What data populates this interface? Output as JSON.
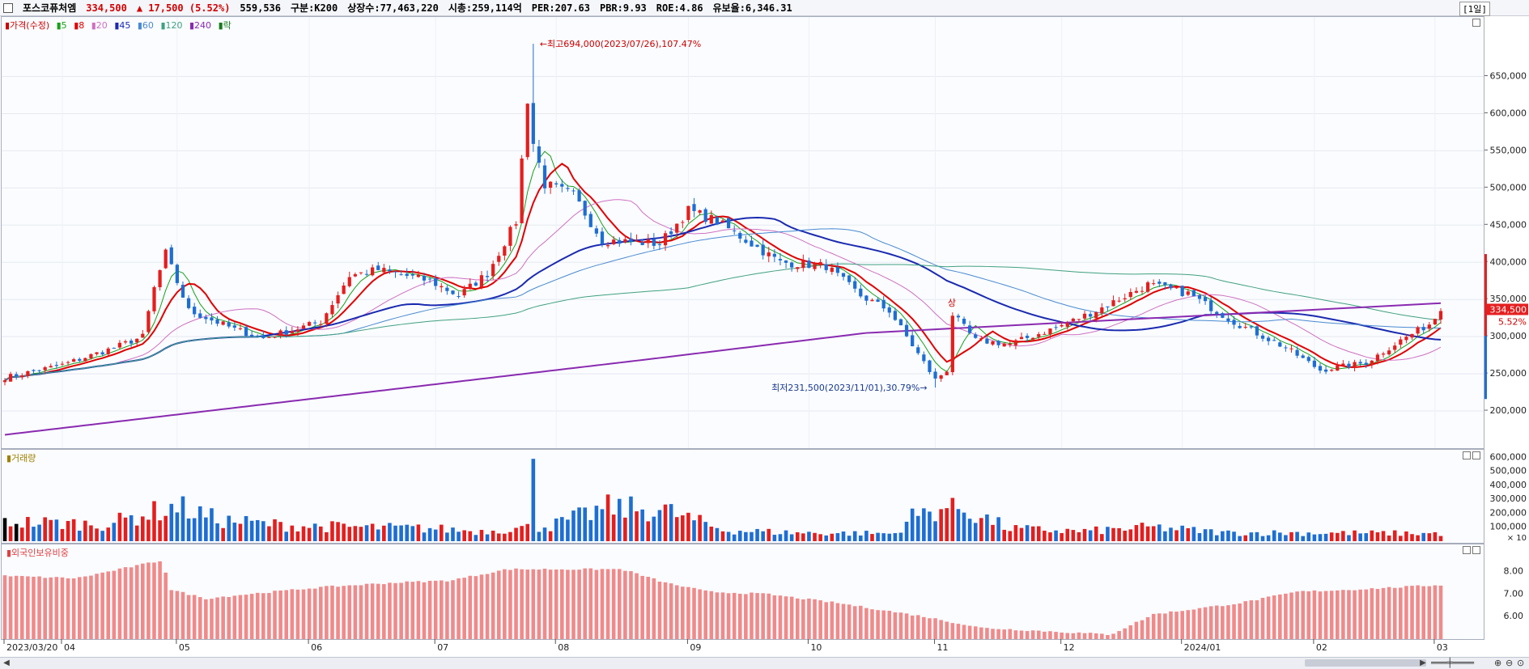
{
  "info": {
    "name": "포스코퓨처엠",
    "price": "334,500",
    "change": "▲ 17,500 (5.52%)",
    "volume": "559,536",
    "segment": "구분:K200",
    "shares": "상장수:77,463,220",
    "market_cap": "시총:259,114억",
    "per": "PER:207.63",
    "pbr": "PBR:9.93",
    "roe": "ROE:4.86",
    "float": "유보율:6,346.31",
    "period": "[1일]"
  },
  "legend": {
    "price": "▮가격(수정)",
    "ma5": "▮5",
    "ma8": "▮8",
    "ma20": "▮20",
    "ma45": "▮45",
    "ma60": "▮60",
    "ma120": "▮120",
    "ma240": "▮240",
    "lock": "▮락"
  },
  "annotations": {
    "high": "최고694,000(2023/07/26),107.47%",
    "low": "최저231,500(2023/11/01),30.79%",
    "limit_up": "상",
    "last_price_tag": "334,500",
    "last_change_tag": "5.52%"
  },
  "volume_pane": {
    "title": "▮거래량",
    "unit": "× 10"
  },
  "foreign_pane": {
    "title": "▮외국인보유비중"
  },
  "colors": {
    "up": "#e41e1e",
    "down": "#1e6ed2",
    "ma5": "#1aa01a",
    "ma8": "#e00000",
    "ma20": "#d070c0",
    "ma45": "#1a2ab0",
    "ma60": "#4a8ad0",
    "ma120": "#40a080",
    "ma240": "#8a2ab0",
    "foreign_bar": "#f08a8a"
  },
  "chart_data": [
    {
      "type": "candlestick",
      "title": "",
      "x_tick_labels": [
        "2023/03/20",
        "04",
        "05",
        "06",
        "07",
        "08",
        "09",
        "10",
        "11",
        "12",
        "2024/01",
        "02",
        "03"
      ],
      "y_tick_labels": [
        "200,000",
        "250,000",
        "300,000",
        "350,000",
        "400,000",
        "450,000",
        "500,000",
        "550,000",
        "600,000",
        "650,000"
      ],
      "ylim": [
        150000,
        730000
      ],
      "high_point": {
        "date": "2023/07/26",
        "value": 694000
      },
      "low_point": {
        "date": "2023/11/01",
        "value": 231500
      },
      "close_anchors": [
        [
          "2023/03/20",
          245000
        ],
        [
          "2023/04/03",
          262000
        ],
        [
          "2023/04/14",
          285000
        ],
        [
          "2023/04/21",
          300000
        ],
        [
          "2023/04/25",
          365000
        ],
        [
          "2023/04/27",
          412000
        ],
        [
          "2023/05/03",
          335000
        ],
        [
          "2023/05/15",
          310000
        ],
        [
          "2023/05/22",
          298000
        ],
        [
          "2023/06/05",
          320000
        ],
        [
          "2023/06/12",
          382000
        ],
        [
          "2023/06/19",
          390000
        ],
        [
          "2023/06/30",
          375000
        ],
        [
          "2023/07/07",
          355000
        ],
        [
          "2023/07/14",
          385000
        ],
        [
          "2023/07/21",
          455000
        ],
        [
          "2023/07/25",
          620000
        ],
        [
          "2023/07/26",
          560000
        ],
        [
          "2023/07/28",
          505000
        ],
        [
          "2023/08/04",
          490000
        ],
        [
          "2023/08/11",
          430000
        ],
        [
          "2023/08/25",
          425000
        ],
        [
          "2023/09/01",
          470000
        ],
        [
          "2023/09/08",
          455000
        ],
        [
          "2023/09/15",
          430000
        ],
        [
          "2023/09/25",
          400000
        ],
        [
          "2023/10/05",
          395000
        ],
        [
          "2023/10/13",
          355000
        ],
        [
          "2023/10/20",
          335000
        ],
        [
          "2023/10/25",
          300000
        ],
        [
          "2023/11/01",
          242000
        ],
        [
          "2023/11/03",
          255000
        ],
        [
          "2023/11/06",
          330000
        ],
        [
          "2023/11/10",
          295000
        ],
        [
          "2023/11/20",
          290000
        ],
        [
          "2023/12/01",
          315000
        ],
        [
          "2023/12/11",
          335000
        ],
        [
          "2023/12/22",
          370000
        ],
        [
          "2024/01/02",
          358000
        ],
        [
          "2024/01/12",
          320000
        ],
        [
          "2024/01/25",
          285000
        ],
        [
          "2024/02/02",
          255000
        ],
        [
          "2024/02/14",
          265000
        ],
        [
          "2024/02/22",
          295000
        ],
        [
          "2024/02/29",
          317000
        ],
        [
          "2024/03/04",
          334500
        ]
      ],
      "series": [
        {
          "name": "5",
          "period": 5
        },
        {
          "name": "8",
          "period": 8
        },
        {
          "name": "20",
          "period": 20
        },
        {
          "name": "45",
          "period": 45
        },
        {
          "name": "60",
          "period": 60
        },
        {
          "name": "120",
          "period": 120
        },
        {
          "name": "240",
          "period": 240
        }
      ],
      "ma240_anchors": [
        [
          0,
          168000
        ],
        [
          0.45,
          270000
        ],
        [
          0.6,
          305000
        ],
        [
          1.0,
          345000
        ]
      ]
    },
    {
      "type": "bar",
      "title": "",
      "y_tick_labels": [
        "100,000",
        "200,000",
        "300,000",
        "400,000",
        "500,000",
        "600,000"
      ],
      "ylim": [
        0,
        620000
      ],
      "unit_note": "× 10",
      "peak": {
        "date": "2023/07/26",
        "value": 590000
      },
      "level_anchors": [
        [
          0,
          140000
        ],
        [
          0.07,
          120000
        ],
        [
          0.1,
          200000
        ],
        [
          0.12,
          250000
        ],
        [
          0.15,
          150000
        ],
        [
          0.2,
          110000
        ],
        [
          0.3,
          90000
        ],
        [
          0.33,
          70000
        ],
        [
          0.38,
          110000
        ],
        [
          0.42,
          240000
        ],
        [
          0.46,
          220000
        ],
        [
          0.5,
          80000
        ],
        [
          0.55,
          60000
        ],
        [
          0.62,
          55000
        ],
        [
          0.63,
          170000
        ],
        [
          0.66,
          260000
        ],
        [
          0.7,
          90000
        ],
        [
          0.75,
          70000
        ],
        [
          0.8,
          100000
        ],
        [
          0.85,
          60000
        ],
        [
          0.9,
          60000
        ],
        [
          1.0,
          55000
        ]
      ]
    },
    {
      "type": "bar",
      "title": "",
      "y_tick_labels": [
        "6.00",
        "7.00",
        "8.00"
      ],
      "ylim": [
        5.0,
        9.2
      ],
      "level_anchors": [
        [
          0,
          7.8
        ],
        [
          0.05,
          7.7
        ],
        [
          0.08,
          8.1
        ],
        [
          0.11,
          8.5
        ],
        [
          0.115,
          7.2
        ],
        [
          0.14,
          6.8
        ],
        [
          0.17,
          7.0
        ],
        [
          0.22,
          7.3
        ],
        [
          0.27,
          7.5
        ],
        [
          0.31,
          7.6
        ],
        [
          0.35,
          8.1
        ],
        [
          0.43,
          8.1
        ],
        [
          0.46,
          7.5
        ],
        [
          0.49,
          7.1
        ],
        [
          0.53,
          7.0
        ],
        [
          0.58,
          6.6
        ],
        [
          0.64,
          6.0
        ],
        [
          0.68,
          5.5
        ],
        [
          0.74,
          5.3
        ],
        [
          0.77,
          5.2
        ],
        [
          0.8,
          6.1
        ],
        [
          0.86,
          6.6
        ],
        [
          0.9,
          7.1
        ],
        [
          0.94,
          7.2
        ],
        [
          1.0,
          7.4
        ]
      ]
    }
  ]
}
